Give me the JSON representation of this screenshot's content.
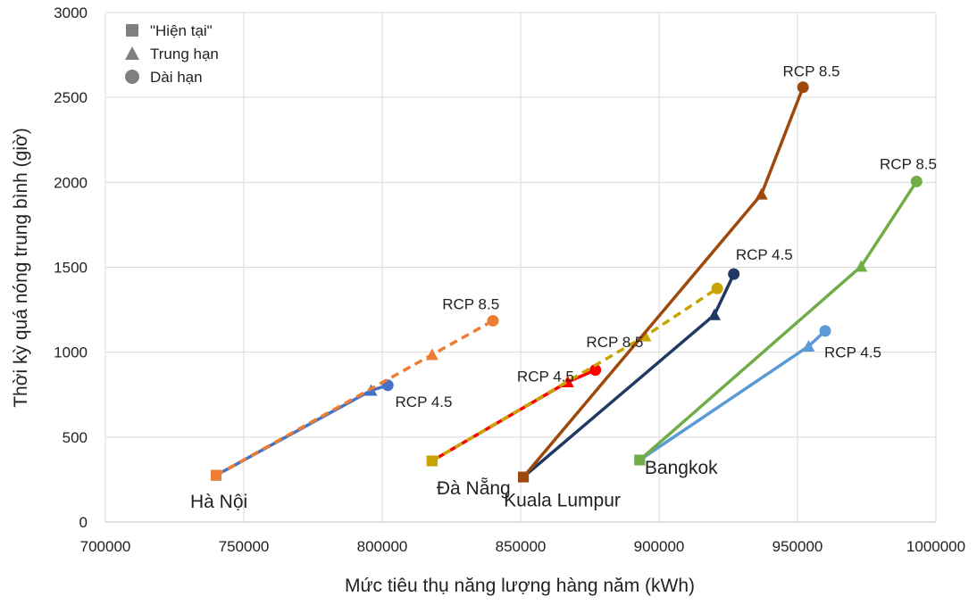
{
  "chart_data": {
    "type": "scatter",
    "xlabel": "Mức tiêu thụ năng lượng hàng năm (kWh)",
    "ylabel": "Thời kỳ quá nóng trung bình (giờ)",
    "xlim": [
      700000,
      1000000
    ],
    "ylim": [
      0,
      3000
    ],
    "x_ticks": [
      "700000",
      "750000",
      "800000",
      "850000",
      "900000",
      "950000",
      "1000000"
    ],
    "y_ticks": [
      "0",
      "500",
      "1000",
      "1500",
      "2000",
      "2500",
      "3000"
    ],
    "grid": true,
    "legend": {
      "placement": "top-left",
      "entries": [
        {
          "label": "\"Hiện tại\"",
          "marker": "square"
        },
        {
          "label": "Trung hạn",
          "marker": "triangle"
        },
        {
          "label": "Dài hạn",
          "marker": "circle"
        }
      ]
    },
    "series": [
      {
        "city": "Hà Nội",
        "scenario": "RCP 4.5",
        "color": "#4472C4",
        "dash": false,
        "points": [
          [
            740000,
            275
          ],
          [
            796000,
            775
          ],
          [
            802000,
            805
          ]
        ]
      },
      {
        "city": "Hà Nội",
        "scenario": "RCP 8.5",
        "color": "#ED7D31",
        "dash": true,
        "points": [
          [
            740000,
            275
          ],
          [
            818000,
            985
          ],
          [
            840000,
            1185
          ]
        ]
      },
      {
        "city": "Đà Nẵng",
        "scenario": "RCP 4.5",
        "color": "#FF0000",
        "dash": false,
        "points": [
          [
            818000,
            360
          ],
          [
            867000,
            825
          ],
          [
            877000,
            895
          ]
        ]
      },
      {
        "city": "Đà Nẵng",
        "scenario": "RCP 8.5",
        "color": "#C9A400",
        "dash": true,
        "points": [
          [
            818000,
            360
          ],
          [
            895000,
            1095
          ],
          [
            921000,
            1375
          ]
        ]
      },
      {
        "city": "Kuala Lumpur",
        "scenario": "RCP 4.5",
        "color": "#1F3864",
        "dash": false,
        "points": [
          [
            851000,
            265
          ],
          [
            920000,
            1220
          ],
          [
            927000,
            1460
          ]
        ]
      },
      {
        "city": "Kuala Lumpur",
        "scenario": "RCP 8.5",
        "color": "#9E480E",
        "dash": false,
        "points": [
          [
            851000,
            265
          ],
          [
            937000,
            1930
          ],
          [
            952000,
            2560
          ]
        ]
      },
      {
        "city": "Bangkok",
        "scenario": "RCP 4.5",
        "color": "#5B9BD5",
        "dash": false,
        "points": [
          [
            893000,
            365
          ],
          [
            954000,
            1035
          ],
          [
            960000,
            1125
          ]
        ]
      },
      {
        "city": "Bangkok",
        "scenario": "RCP 8.5",
        "color": "#70AD47",
        "dash": false,
        "points": [
          [
            893000,
            365
          ],
          [
            973000,
            1505
          ],
          [
            993000,
            2005
          ]
        ]
      }
    ],
    "city_labels": [
      {
        "text": "Hà Nội",
        "x": 741000,
        "y": 120
      },
      {
        "text": "Đà Nẵng",
        "x": 833000,
        "y": 200
      },
      {
        "text": "Kuala Lumpur",
        "x": 865000,
        "y": 130
      },
      {
        "text": "Bangkok",
        "x": 908000,
        "y": 320
      }
    ],
    "annotations": [
      {
        "text": "RCP 4.5",
        "x": 815000,
        "y": 710
      },
      {
        "text": "RCP 8.5",
        "x": 832000,
        "y": 1285
      },
      {
        "text": "RCP 4.5",
        "x": 859000,
        "y": 860
      },
      {
        "text": "RCP 8.5",
        "x": 884000,
        "y": 1060
      },
      {
        "text": "RCP 4.5",
        "x": 938000,
        "y": 1575
      },
      {
        "text": "RCP 8.5",
        "x": 955000,
        "y": 2655
      },
      {
        "text": "RCP 4.5",
        "x": 970000,
        "y": 1000
      },
      {
        "text": "RCP 8.5",
        "x": 990000,
        "y": 2110
      }
    ]
  }
}
